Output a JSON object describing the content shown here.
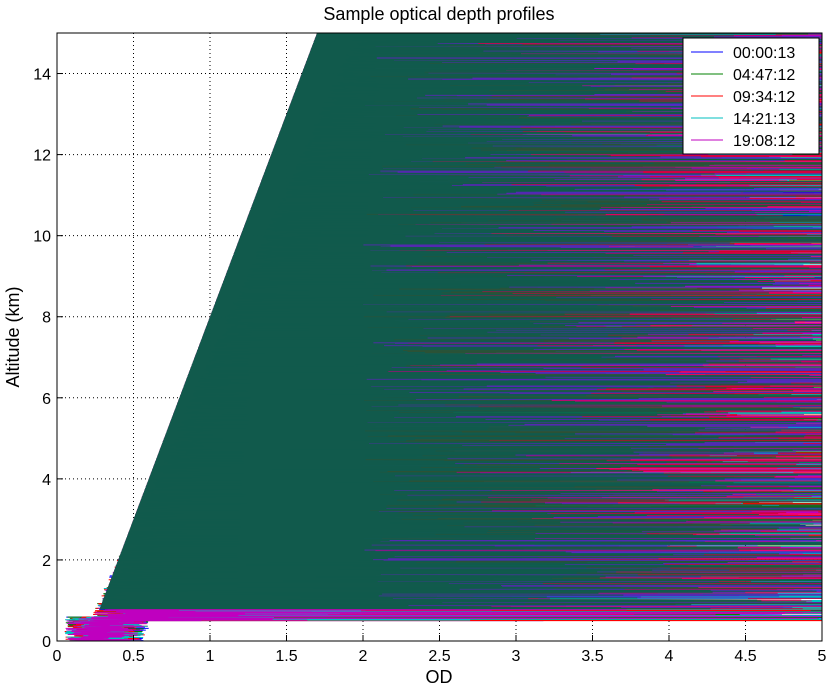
{
  "chart_data": {
    "type": "line",
    "title": "Sample optical depth profiles",
    "xlabel": "OD",
    "ylabel": "Altitude (km)",
    "xlim": [
      0,
      5
    ],
    "ylim": [
      0,
      15
    ],
    "x_ticks": [
      "0",
      "0.5",
      "1",
      "1.5",
      "2",
      "2.5",
      "3",
      "3.5",
      "4",
      "4.5",
      "5"
    ],
    "y_ticks": [
      "0",
      "2",
      "4",
      "6",
      "8",
      "10",
      "12",
      "14"
    ],
    "grid": "dotted",
    "legend_position": "top-right",
    "series": [
      {
        "name": "00:00:13",
        "color": "#0000ff"
      },
      {
        "name": "04:47:12",
        "color": "#008000"
      },
      {
        "name": "09:34:12",
        "color": "#ff0000"
      },
      {
        "name": "14:21:13",
        "color": "#00bfbf"
      },
      {
        "name": "19:08:12",
        "color": "#bf00bf"
      }
    ]
  }
}
